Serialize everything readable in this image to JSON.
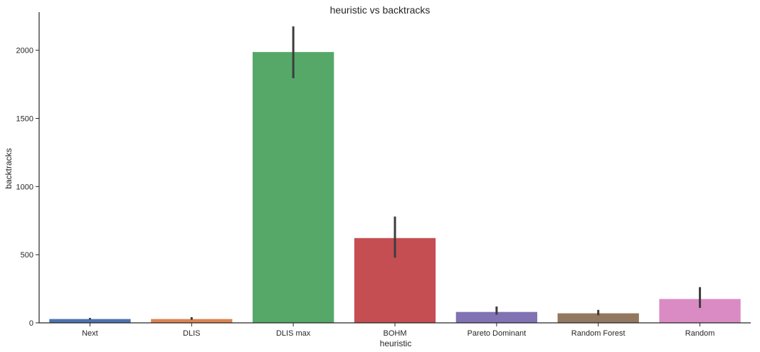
{
  "chart_data": {
    "type": "bar",
    "title": "heuristic vs backtracks",
    "xlabel": "heuristic",
    "ylabel": "backtracks",
    "categories": [
      "Next",
      "DLIS",
      "DLIS max",
      "BOHM",
      "Pareto Dominant",
      "Random Forest",
      "Random"
    ],
    "values": [
      28,
      28,
      1987,
      622,
      80,
      70,
      175
    ],
    "error_low": [
      24,
      22,
      1795,
      478,
      60,
      55,
      110
    ],
    "error_high": [
      36,
      42,
      2175,
      780,
      120,
      95,
      262
    ],
    "colors": [
      "#4c72b0",
      "#dd8452",
      "#55a868",
      "#c44e52",
      "#8172b3",
      "#937860",
      "#da8bc3"
    ],
    "ylim": [
      0,
      2280
    ],
    "yticks": [
      0,
      500,
      1000,
      1500,
      2000
    ],
    "grid": false,
    "legend": "none"
  }
}
